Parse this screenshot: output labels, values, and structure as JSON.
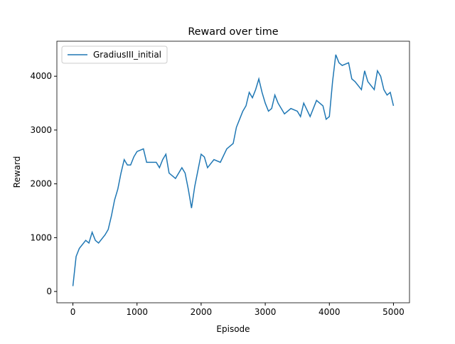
{
  "chart_data": {
    "type": "line",
    "title": "Reward over time",
    "xlabel": "Episode",
    "ylabel": "Reward",
    "x": [
      0,
      50,
      100,
      200,
      250,
      300,
      350,
      400,
      500,
      550,
      600,
      650,
      700,
      750,
      800,
      850,
      900,
      950,
      1000,
      1100,
      1150,
      1200,
      1300,
      1350,
      1400,
      1450,
      1500,
      1600,
      1700,
      1750,
      1800,
      1850,
      1900,
      2000,
      2050,
      2100,
      2200,
      2300,
      2400,
      2500,
      2550,
      2600,
      2650,
      2700,
      2750,
      2800,
      2850,
      2900,
      2950,
      3000,
      3050,
      3100,
      3150,
      3200,
      3300,
      3400,
      3500,
      3550,
      3600,
      3700,
      3800,
      3900,
      3950,
      4000,
      4050,
      4100,
      4150,
      4200,
      4300,
      4350,
      4400,
      4500,
      4550,
      4600,
      4700,
      4750,
      4800,
      4850,
      4900,
      4950,
      5000
    ],
    "series": [
      {
        "name": "GradiusIII_initial",
        "color": "#1f77b4",
        "values": [
          100,
          650,
          800,
          950,
          900,
          1100,
          950,
          900,
          1050,
          1150,
          1400,
          1700,
          1900,
          2200,
          2450,
          2350,
          2350,
          2500,
          2600,
          2650,
          2400,
          2400,
          2400,
          2300,
          2450,
          2550,
          2200,
          2100,
          2300,
          2200,
          1900,
          1550,
          1950,
          2550,
          2500,
          2300,
          2450,
          2400,
          2650,
          2750,
          3050,
          3200,
          3350,
          3450,
          3700,
          3600,
          3750,
          3950,
          3700,
          3500,
          3350,
          3400,
          3650,
          3500,
          3300,
          3400,
          3350,
          3250,
          3500,
          3250,
          3550,
          3450,
          3200,
          3250,
          3900,
          4400,
          4250,
          4200,
          4250,
          3950,
          3900,
          3750,
          4100,
          3900,
          3750,
          4100,
          4000,
          3750,
          3650,
          3700,
          3450
        ]
      }
    ],
    "xlim": [
      -250,
      5250
    ],
    "ylim": [
      -210,
      4650
    ],
    "xticks": [
      0,
      1000,
      2000,
      3000,
      4000,
      5000
    ],
    "yticks": [
      0,
      1000,
      2000,
      3000,
      4000
    ],
    "legend": "upper left"
  }
}
